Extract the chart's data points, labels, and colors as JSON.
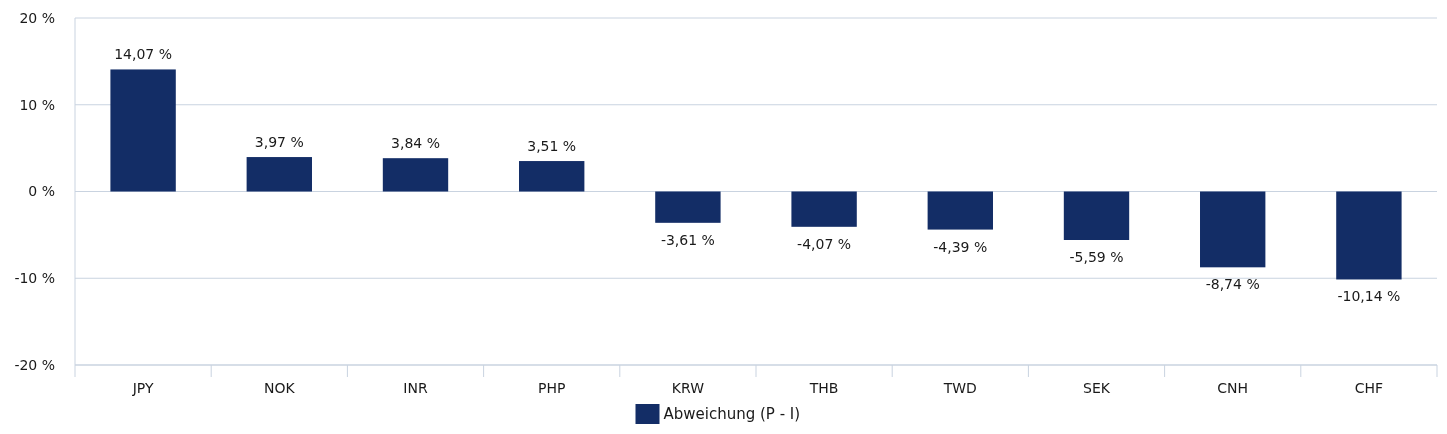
{
  "chart_data": {
    "type": "bar",
    "categories": [
      "JPY",
      "NOK",
      "INR",
      "PHP",
      "KRW",
      "THB",
      "TWD",
      "SEK",
      "CNH",
      "CHF"
    ],
    "series": [
      {
        "name": "Abweichung (P - I)",
        "color": "#132d66",
        "values": [
          14.07,
          3.97,
          3.84,
          3.51,
          -3.61,
          -4.07,
          -4.39,
          -5.59,
          -8.74,
          -10.14
        ],
        "value_labels": [
          "14,07 %",
          "3,97 %",
          "3,84 %",
          "3,51 %",
          "-3,61 %",
          "-4,07 %",
          "-4,39 %",
          "-5,59 %",
          "-8,74 %",
          "-10,14 %"
        ]
      }
    ],
    "ylim": [
      -20,
      20
    ],
    "yticks": [
      {
        "value": -20,
        "label": "-20 %"
      },
      {
        "value": -10,
        "label": "-10 %"
      },
      {
        "value": 0,
        "label": "0 %"
      },
      {
        "value": 10,
        "label": "10 %"
      },
      {
        "value": 20,
        "label": "20 %"
      }
    ],
    "grid": "y",
    "legend": "bottom"
  }
}
